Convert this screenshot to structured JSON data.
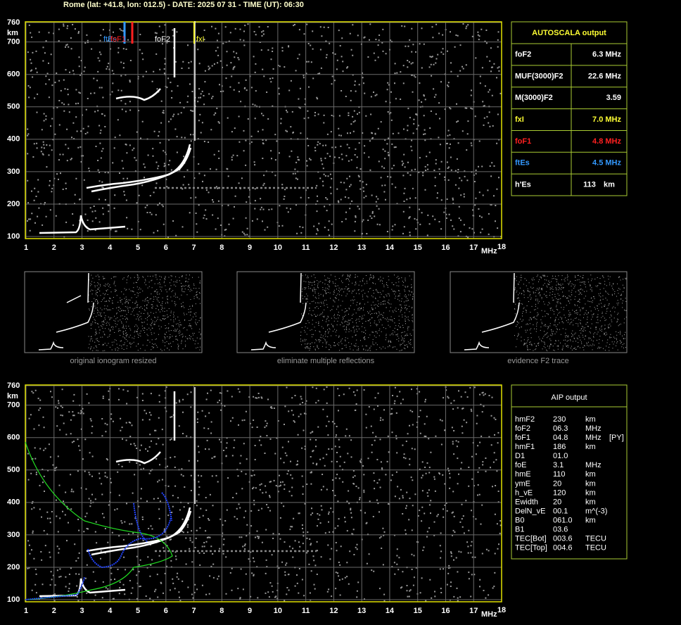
{
  "header": "Rome (lat: +41.8, lon: 012.5) - DATE: 2025 07 31 - TIME (UT): 06:30",
  "ionogram_top": {
    "y_unit": "km",
    "x_unit": "MHz",
    "yticks": [
      760,
      700,
      600,
      500,
      400,
      300,
      200,
      100
    ],
    "xticks": [
      1,
      2,
      3,
      4,
      5,
      6,
      7,
      8,
      9,
      10,
      11,
      12,
      13,
      14,
      15,
      16,
      17,
      18
    ],
    "markers": [
      "ftEs",
      "foF1",
      "foF2",
      "fxI"
    ]
  },
  "autoscala": {
    "title": "AUTOSCALA output",
    "rows": [
      {
        "label": "foF2",
        "value": "6.3 MHz",
        "color": "#ffffff"
      },
      {
        "label": "MUF(3000)F2",
        "value": "22.6 MHz",
        "color": "#ffffff"
      },
      {
        "label": "M(3000)F2",
        "value": "3.59",
        "color": "#ffffff"
      },
      {
        "label": "fxI",
        "value": "7.0 MHz",
        "color": "#ffff33"
      },
      {
        "label": "foF1",
        "value": "4.8 MHz",
        "color": "#ff2020"
      },
      {
        "label": "ftEs",
        "value": "4.5 MHz",
        "color": "#3399ff"
      },
      {
        "label": "h'Es",
        "value": "113",
        "unit": "km",
        "color": "#ffffff"
      }
    ]
  },
  "thumbnails": [
    "original ionogram resized",
    "eliminate multiple reflections",
    "evidence F2 trace"
  ],
  "ionogram_bottom": {
    "y_unit": "km",
    "x_unit": "MHz",
    "yticks": [
      760,
      700,
      600,
      500,
      400,
      300,
      200,
      100
    ],
    "xticks": [
      1,
      2,
      3,
      4,
      5,
      6,
      7,
      8,
      9,
      10,
      11,
      12,
      13,
      14,
      15,
      16,
      17,
      18
    ]
  },
  "aip": {
    "title": "AIP output",
    "rows": [
      [
        "hmF2",
        "230",
        "km"
      ],
      [
        "foF2",
        "06.3",
        "MHz"
      ],
      [
        "foF1",
        "04.8",
        "MHz",
        "[PY]"
      ],
      [
        "hmF1",
        "186",
        "km"
      ],
      [
        "D1",
        "01.0"
      ],
      [
        "foE",
        "3.1",
        "MHz"
      ],
      [
        "hmE",
        "110",
        "km"
      ],
      [
        "ymE",
        "20",
        "km"
      ],
      [
        "h_vE",
        "120",
        "km"
      ],
      [
        "Ewidth",
        "20",
        "km"
      ],
      [
        "DelN_vE",
        "00.1",
        "m^(-3)"
      ],
      [
        "B0",
        "061.0",
        "km"
      ],
      [
        "B1",
        "03.6"
      ],
      [
        "TEC[Bot]",
        "003.6",
        "TECU"
      ],
      [
        "TEC[Top]",
        "004.6",
        "TECU"
      ]
    ]
  }
}
